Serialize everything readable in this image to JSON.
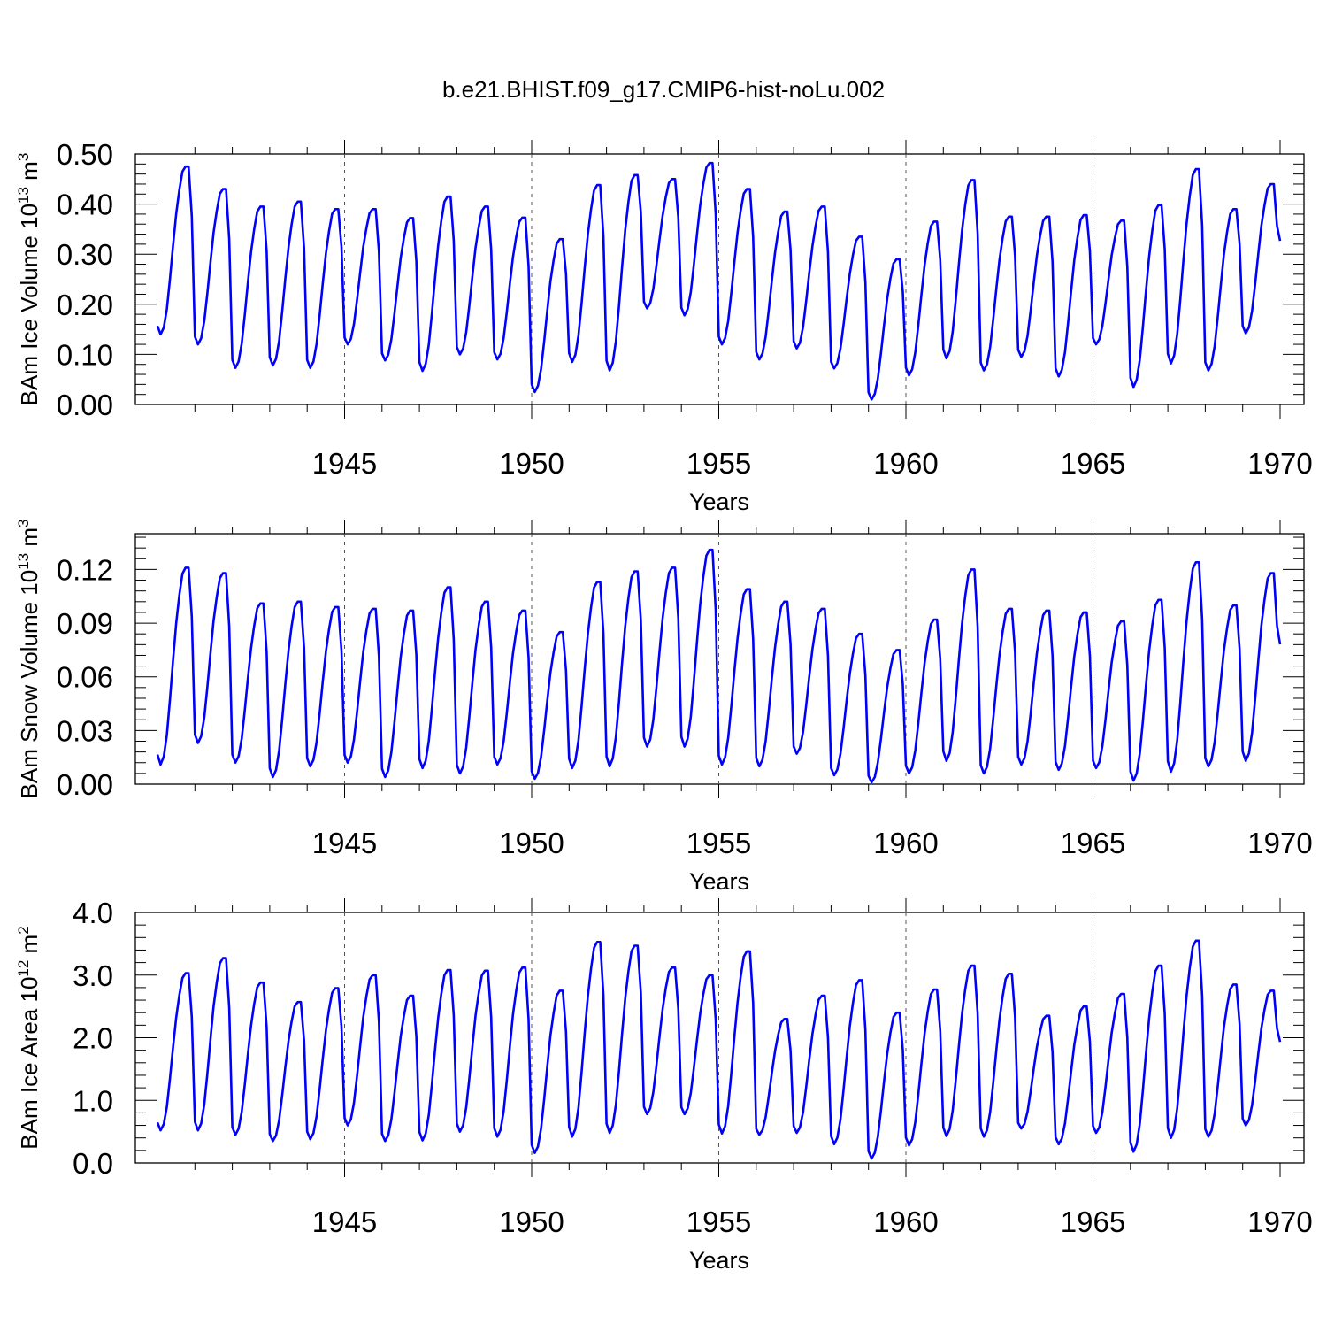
{
  "title": "b.e21.BHIST.f09_g17.CMIP6-hist-noLu.002",
  "line_color": "#0000ff",
  "chart_data": [
    {
      "type": "line",
      "title": "b.e21.BHIST.f09_g17.CMIP6-hist-noLu.002",
      "ylabel_main": "BAm Ice Volume 10",
      "ylabel_exp": "13",
      "ylabel_unit": " m",
      "ylabel_unit_exp": "3",
      "xlabel": "Years",
      "xlim": [
        1940,
        1970
      ],
      "ylim": [
        0,
        0.5
      ],
      "yticks": [
        0.0,
        0.1,
        0.2,
        0.3,
        0.4,
        0.5
      ],
      "ytick_labels": [
        "0.00",
        "0.10",
        "0.20",
        "0.30",
        "0.40",
        "0.50"
      ],
      "xticks": [
        1945,
        1950,
        1955,
        1960,
        1965,
        1970
      ],
      "xtick_labels": [
        "1945",
        "1950",
        "1955",
        "1960",
        "1965",
        "1970"
      ],
      "grid": "vertical dashed at labeled years",
      "series": [
        {
          "name": "BAm Ice Volume",
          "start_year": 1940,
          "annual": {
            "max": [
              0.475,
              0.43,
              0.395,
              0.405,
              0.39,
              0.39,
              0.372,
              0.415,
              0.395,
              0.373,
              0.33,
              0.438,
              0.458,
              0.45,
              0.482,
              0.43,
              0.385,
              0.395,
              0.335,
              0.29,
              0.365,
              0.448,
              0.375,
              0.375,
              0.378,
              0.367,
              0.398,
              0.47,
              0.39,
              0.44
            ],
            "min": [
              0.14,
              0.12,
              0.073,
              0.078,
              0.073,
              0.12,
              0.088,
              0.067,
              0.1,
              0.09,
              0.025,
              0.085,
              0.068,
              0.192,
              0.178,
              0.12,
              0.09,
              0.112,
              0.072,
              0.01,
              0.058,
              0.092,
              0.068,
              0.095,
              0.056,
              0.12,
              0.035,
              0.082,
              0.068,
              0.142
            ]
          }
        }
      ]
    },
    {
      "type": "line",
      "ylabel_main": "BAm Snow Volume 10",
      "ylabel_exp": "13",
      "ylabel_unit": " m",
      "ylabel_unit_exp": "3",
      "xlabel": "Years",
      "xlim": [
        1940,
        1970
      ],
      "ylim": [
        0,
        0.14
      ],
      "yticks": [
        0.0,
        0.03,
        0.06,
        0.09,
        0.12
      ],
      "ytick_labels": [
        "0.00",
        "0.03",
        "0.06",
        "0.09",
        "0.12"
      ],
      "xticks": [
        1945,
        1950,
        1955,
        1960,
        1965,
        1970
      ],
      "xtick_labels": [
        "1945",
        "1950",
        "1955",
        "1960",
        "1965",
        "1970"
      ],
      "grid": "vertical dashed at labeled years",
      "series": [
        {
          "name": "BAm Snow Volume",
          "start_year": 1940,
          "annual": {
            "max": [
              0.121,
              0.118,
              0.101,
              0.102,
              0.099,
              0.098,
              0.097,
              0.11,
              0.102,
              0.097,
              0.085,
              0.113,
              0.119,
              0.121,
              0.131,
              0.109,
              0.102,
              0.098,
              0.084,
              0.075,
              0.092,
              0.12,
              0.098,
              0.097,
              0.096,
              0.091,
              0.103,
              0.124,
              0.1,
              0.118
            ],
            "min": [
              0.011,
              0.023,
              0.012,
              0.004,
              0.01,
              0.012,
              0.004,
              0.009,
              0.006,
              0.011,
              0.003,
              0.009,
              0.01,
              0.021,
              0.021,
              0.011,
              0.01,
              0.017,
              0.005,
              0.001,
              0.006,
              0.013,
              0.006,
              0.011,
              0.008,
              0.009,
              0.002,
              0.007,
              0.01,
              0.013
            ]
          }
        }
      ]
    },
    {
      "type": "line",
      "ylabel_main": "BAm Ice Area 10",
      "ylabel_exp": "12",
      "ylabel_unit": " m",
      "ylabel_unit_exp": "2",
      "xlabel": "Years",
      "xlim": [
        1940,
        1970
      ],
      "ylim": [
        0,
        4.0
      ],
      "yticks": [
        0.0,
        1.0,
        2.0,
        3.0,
        4.0
      ],
      "ytick_labels": [
        "0.0",
        "1.0",
        "2.0",
        "3.0",
        "4.0"
      ],
      "xticks": [
        1945,
        1950,
        1955,
        1960,
        1965,
        1970
      ],
      "xtick_labels": [
        "1945",
        "1950",
        "1955",
        "1960",
        "1965",
        "1970"
      ],
      "grid": "vertical dashed at labeled years",
      "series": [
        {
          "name": "BAm Ice Area",
          "start_year": 1940,
          "annual": {
            "max": [
              3.03,
              3.27,
              2.88,
              2.57,
              2.79,
              3.0,
              2.67,
              3.08,
              3.07,
              3.12,
              2.75,
              3.53,
              3.47,
              3.12,
              3.0,
              3.38,
              2.3,
              2.67,
              2.92,
              2.4,
              2.77,
              3.15,
              3.02,
              2.35,
              2.5,
              2.7,
              3.15,
              3.55,
              2.85,
              2.75
            ],
            "min": [
              0.52,
              0.52,
              0.45,
              0.35,
              0.38,
              0.6,
              0.35,
              0.36,
              0.5,
              0.42,
              0.16,
              0.42,
              0.48,
              0.78,
              0.78,
              0.47,
              0.45,
              0.48,
              0.3,
              0.07,
              0.28,
              0.43,
              0.42,
              0.55,
              0.3,
              0.48,
              0.18,
              0.4,
              0.42,
              0.6
            ]
          }
        }
      ]
    }
  ]
}
